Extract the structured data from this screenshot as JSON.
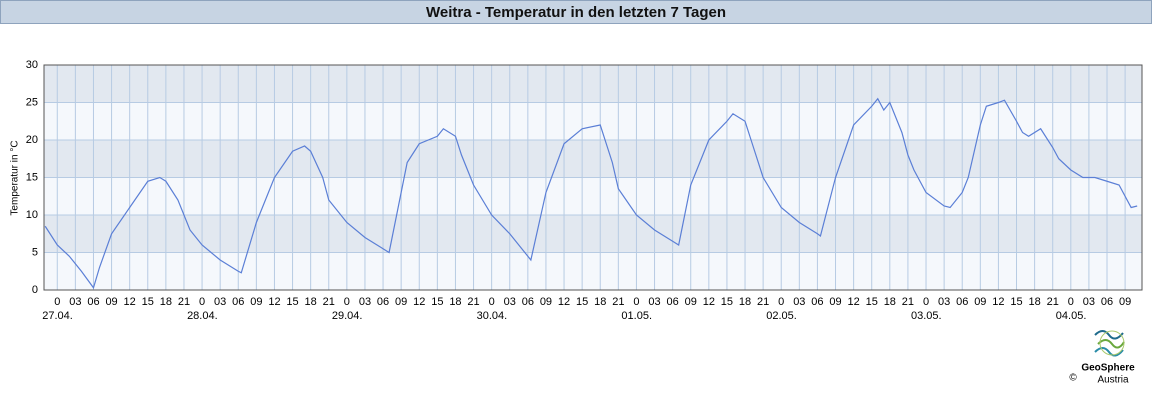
{
  "chart_data": {
    "type": "line",
    "title": "Weitra - Temperatur in den letzten 7 Tagen",
    "y_label": "Temperatur in °C",
    "x": [
      -2,
      0,
      2,
      4,
      6,
      7,
      9,
      12,
      15,
      17,
      18,
      20,
      22,
      24,
      27,
      30,
      30.5,
      33,
      36,
      39,
      41,
      42,
      44,
      45,
      48,
      51,
      54,
      55,
      57,
      58,
      60,
      63,
      64,
      66,
      67,
      69,
      72,
      75,
      78,
      78.5,
      81,
      84,
      87,
      90,
      92,
      93,
      96,
      99,
      102,
      103,
      105,
      108,
      111,
      112,
      114,
      115,
      117,
      120,
      123,
      126,
      126.5,
      129,
      132,
      135,
      136,
      137,
      138,
      140,
      141,
      142,
      144,
      147,
      148,
      150,
      151,
      153,
      154,
      156,
      157,
      159,
      160,
      161,
      163,
      165,
      166,
      168,
      170,
      172,
      174,
      176,
      178,
      179
    ],
    "series": [
      {
        "name": "Temperatur",
        "color": "#5b7fd6",
        "values": [
          8.5,
          6,
          4.5,
          2.5,
          0.3,
          3,
          7.5,
          11,
          14.5,
          15,
          14.5,
          12,
          8,
          6,
          4,
          2.5,
          2.3,
          9,
          15,
          18.5,
          19.2,
          18.5,
          15,
          12,
          9,
          7,
          5.5,
          5,
          13,
          17,
          19.5,
          20.5,
          21.5,
          20.5,
          18,
          14,
          10,
          7.5,
          4.5,
          4,
          13,
          19.5,
          21.5,
          22,
          17,
          13.5,
          10,
          8,
          6.5,
          6,
          14,
          20,
          22.5,
          23.5,
          22.5,
          20,
          15,
          11,
          9,
          7.5,
          7.2,
          15,
          22,
          24.5,
          25.5,
          24,
          25,
          21,
          18,
          16,
          13,
          11.2,
          11,
          13,
          15,
          22,
          24.5,
          25,
          25.3,
          22.5,
          21,
          20.5,
          21.5,
          19,
          17.5,
          16,
          15,
          15,
          14.5,
          14,
          11,
          11.2
        ]
      }
    ],
    "xlim": [
      -2.2,
      179.8
    ],
    "ylim": [
      0,
      30
    ],
    "yticks": [
      0,
      5,
      10,
      15,
      20,
      25,
      30
    ],
    "xticks": [
      0,
      {
        "value": 3,
        "label": "03"
      },
      {
        "value": 6,
        "label": "06"
      },
      {
        "value": 9,
        "label": "09"
      },
      {
        "value": 12,
        "label": "12"
      },
      {
        "value": 15,
        "label": "15"
      },
      {
        "value": 18,
        "label": "18"
      },
      {
        "value": 21,
        "label": "21"
      },
      {
        "value": 24,
        "label": "0"
      },
      {
        "value": 27,
        "label": "03"
      },
      {
        "value": 30,
        "label": "06"
      },
      {
        "value": 33,
        "label": "09"
      },
      {
        "value": 36,
        "label": "12"
      },
      {
        "value": 39,
        "label": "15"
      },
      {
        "value": 42,
        "label": "18"
      },
      {
        "value": 45,
        "label": "21"
      },
      {
        "value": 48,
        "label": "0"
      },
      {
        "value": 51,
        "label": "03"
      },
      {
        "value": 54,
        "label": "06"
      },
      {
        "value": 57,
        "label": "09"
      },
      {
        "value": 60,
        "label": "12"
      },
      {
        "value": 63,
        "label": "15"
      },
      {
        "value": 66,
        "label": "18"
      },
      {
        "value": 69,
        "label": "21"
      },
      {
        "value": 72,
        "label": "0"
      },
      {
        "value": 75,
        "label": "03"
      },
      {
        "value": 78,
        "label": "06"
      },
      {
        "value": 81,
        "label": "09"
      },
      {
        "value": 84,
        "label": "12"
      },
      {
        "value": 87,
        "label": "15"
      },
      {
        "value": 90,
        "label": "18"
      },
      {
        "value": 93,
        "label": "21"
      },
      {
        "value": 96,
        "label": "0"
      },
      {
        "value": 99,
        "label": "03"
      },
      {
        "value": 102,
        "label": "06"
      },
      {
        "value": 105,
        "label": "09"
      },
      {
        "value": 108,
        "label": "12"
      },
      {
        "value": 111,
        "label": "15"
      },
      {
        "value": 114,
        "label": "18"
      },
      {
        "value": 117,
        "label": "21"
      },
      {
        "value": 120,
        "label": "0"
      },
      {
        "value": 123,
        "label": "03"
      },
      {
        "value": 126,
        "label": "06"
      },
      {
        "value": 129,
        "label": "09"
      },
      {
        "value": 132,
        "label": "12"
      },
      {
        "value": 135,
        "label": "15"
      },
      {
        "value": 138,
        "label": "18"
      },
      {
        "value": 141,
        "label": "21"
      },
      {
        "value": 144,
        "label": "0"
      },
      {
        "value": 147,
        "label": "03"
      },
      {
        "value": 150,
        "label": "06"
      },
      {
        "value": 153,
        "label": "09"
      },
      {
        "value": 156,
        "label": "12"
      },
      {
        "value": 159,
        "label": "15"
      },
      {
        "value": 162,
        "label": "18"
      },
      {
        "value": 165,
        "label": "21"
      },
      {
        "value": 168,
        "label": "0"
      },
      {
        "value": 171,
        "label": "03"
      },
      {
        "value": 174,
        "label": "06"
      },
      {
        "value": 177,
        "label": "09"
      }
    ],
    "day_labels": [
      {
        "value": 0,
        "label": "27.04."
      },
      {
        "value": 24,
        "label": "28.04."
      },
      {
        "value": 48,
        "label": "29.04."
      },
      {
        "value": 72,
        "label": "30.04."
      },
      {
        "value": 96,
        "label": "01.05."
      },
      {
        "value": 120,
        "label": "02.05."
      },
      {
        "value": 144,
        "label": "03.05."
      },
      {
        "value": 168,
        "label": "04.05."
      }
    ],
    "grid": true
  },
  "footer": {
    "brand": "GeoSphere",
    "country": "Austria",
    "copyright": "©"
  }
}
